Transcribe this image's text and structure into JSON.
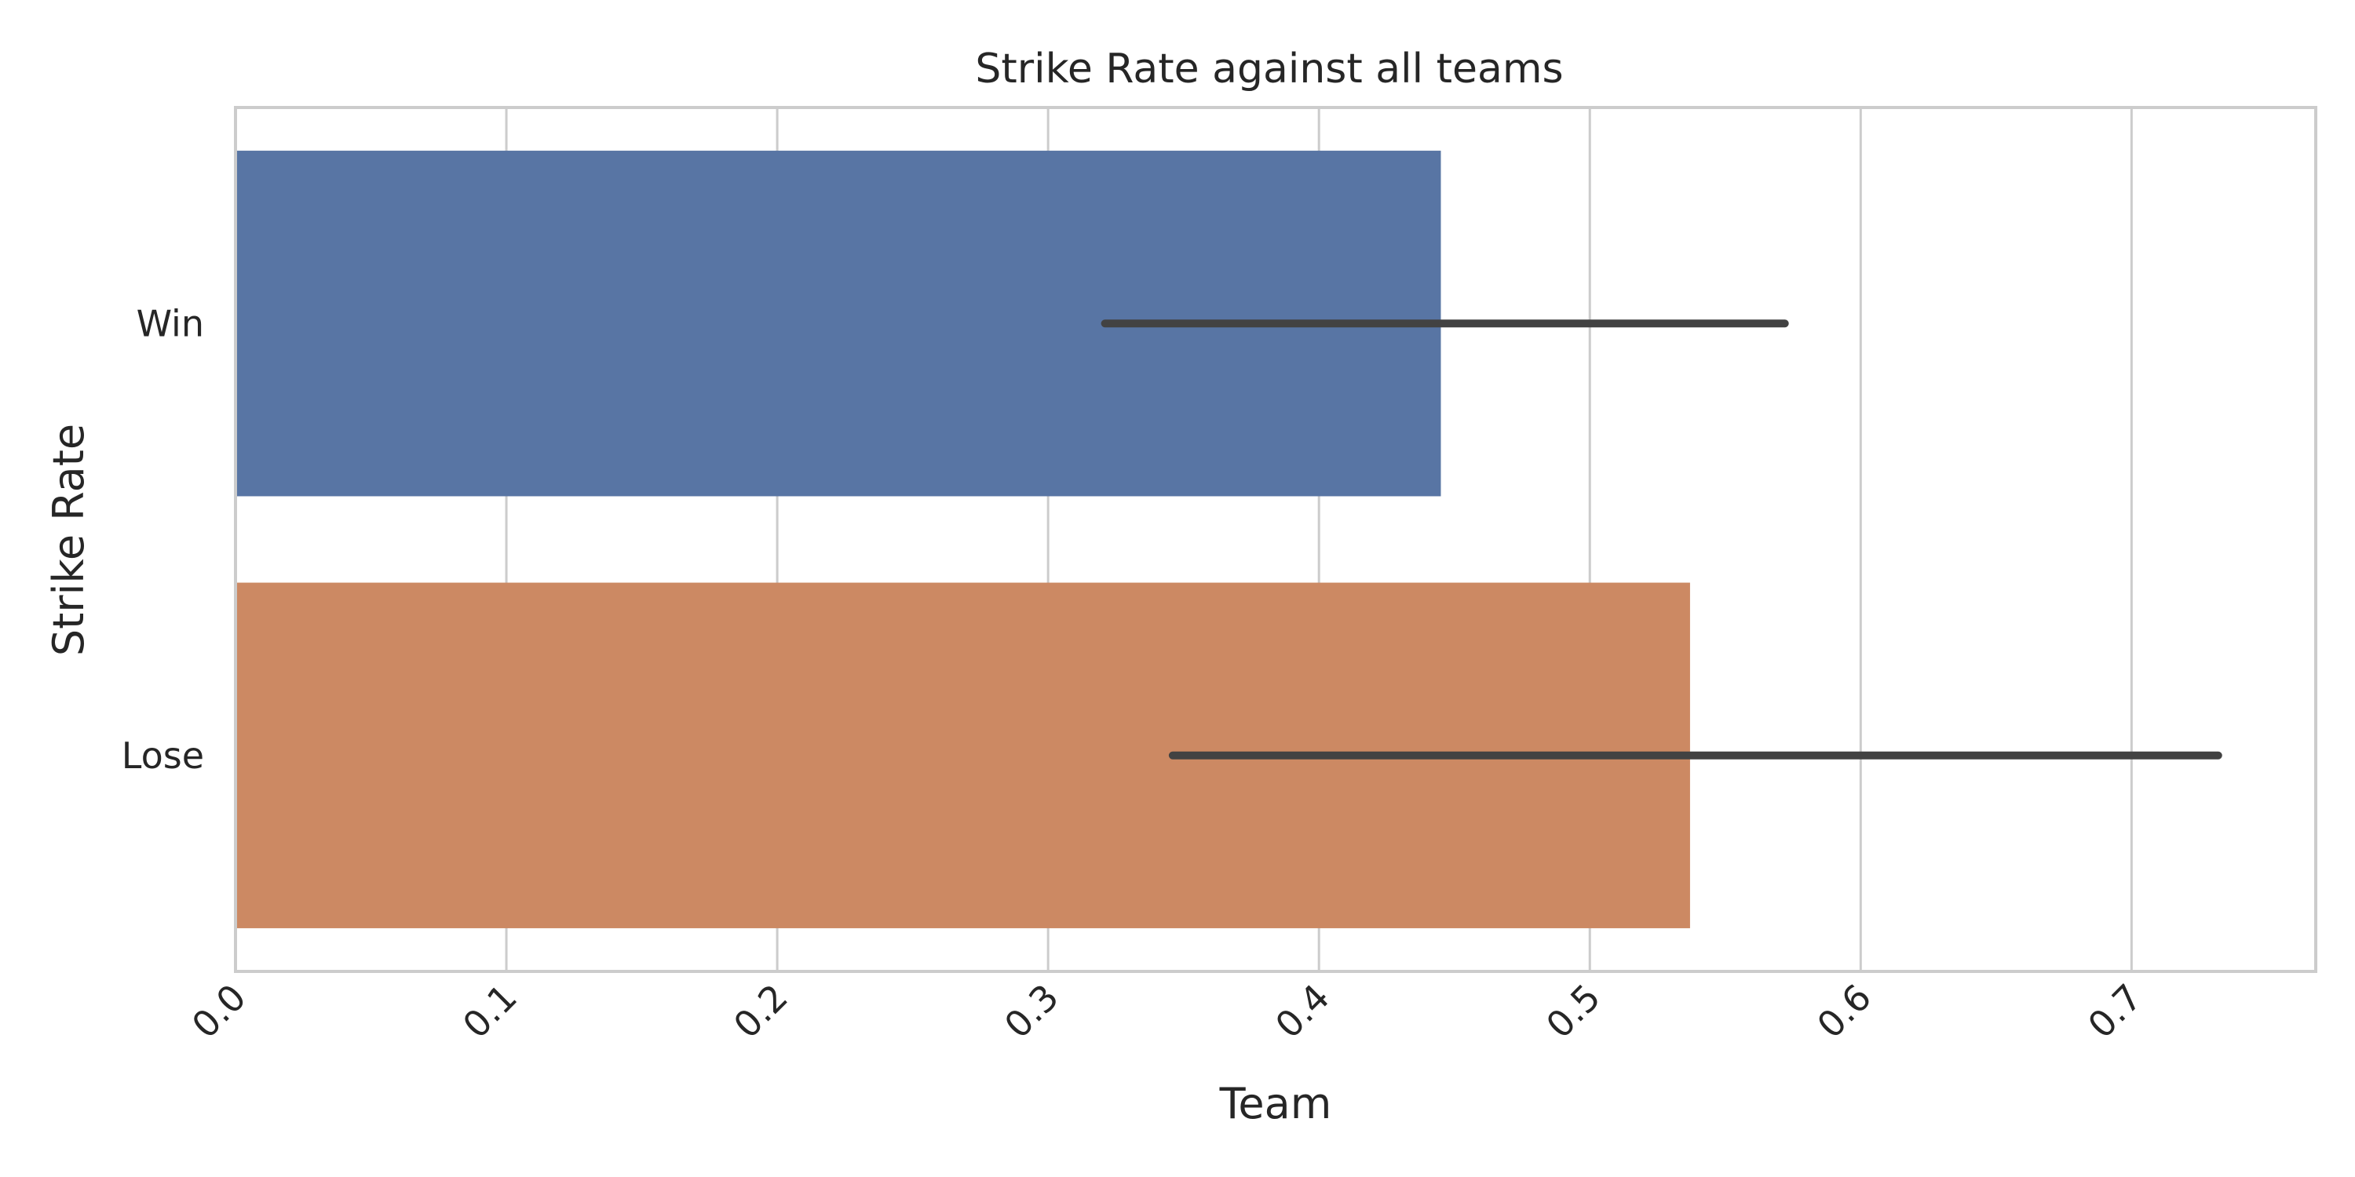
{
  "chart_data": {
    "type": "bar",
    "orientation": "horizontal",
    "title": "Strike Rate against all teams",
    "xlabel": "Team",
    "ylabel": "Strike Rate",
    "xlim": [
      0,
      0.768
    ],
    "xticks": [
      0.0,
      0.1,
      0.2,
      0.3,
      0.4,
      0.5,
      0.6,
      0.7
    ],
    "xtick_labels": [
      "0.0",
      "0.1",
      "0.2",
      "0.3",
      "0.4",
      "0.5",
      "0.6",
      "0.7"
    ],
    "xtick_rotation_deg": 45,
    "grid": "vertical",
    "categories": [
      "Win",
      "Lose"
    ],
    "values": [
      0.445,
      0.537
    ],
    "error_low": [
      0.321,
      0.346
    ],
    "error_high": [
      0.572,
      0.732
    ],
    "colors": [
      "#5875a4",
      "#cc8963"
    ],
    "error_bar_color": "#424242",
    "grid_color": "#cccccc",
    "text_color": "#262626"
  }
}
